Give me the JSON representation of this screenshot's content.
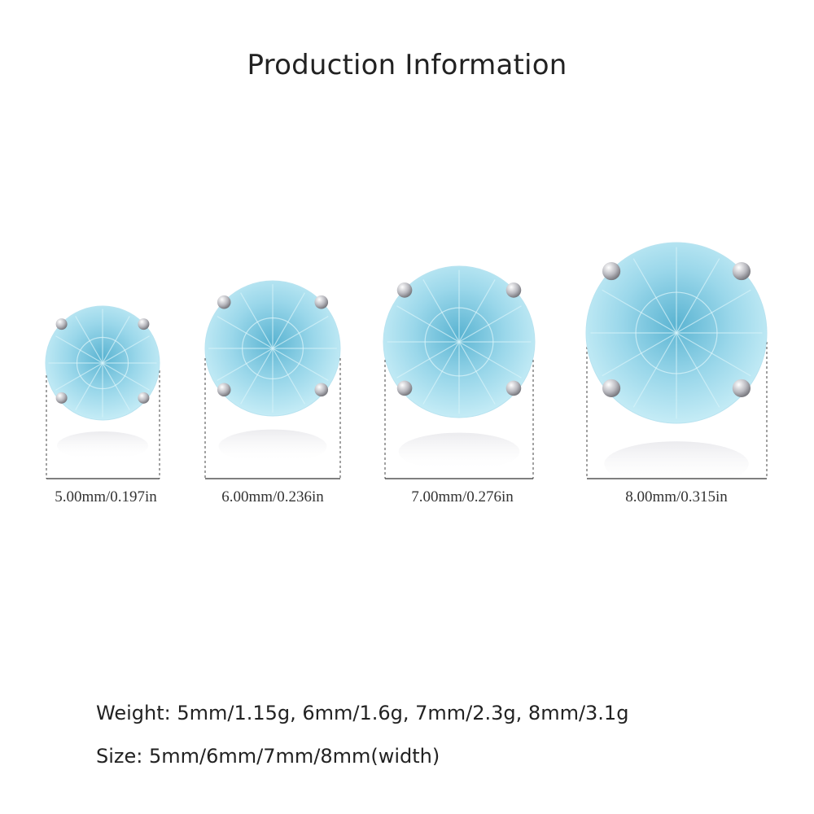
{
  "title": "Production Information",
  "products": [
    {
      "label": "5.00mm/0.197in"
    },
    {
      "label": "6.00mm/0.236in"
    },
    {
      "label": "7.00mm/0.276in"
    },
    {
      "label": "8.00mm/0.315in"
    }
  ],
  "specs": {
    "weight": "Weight:  5mm/1.15g, 6mm/1.6g, 7mm/2.3g, 8mm/3.1g",
    "size": "Size:  5mm/6mm/7mm/8mm(width)"
  },
  "colors": {
    "stone": "#8fd0e6",
    "stone_dark": "#4aa8c8",
    "metal": "#c8c8cc"
  }
}
